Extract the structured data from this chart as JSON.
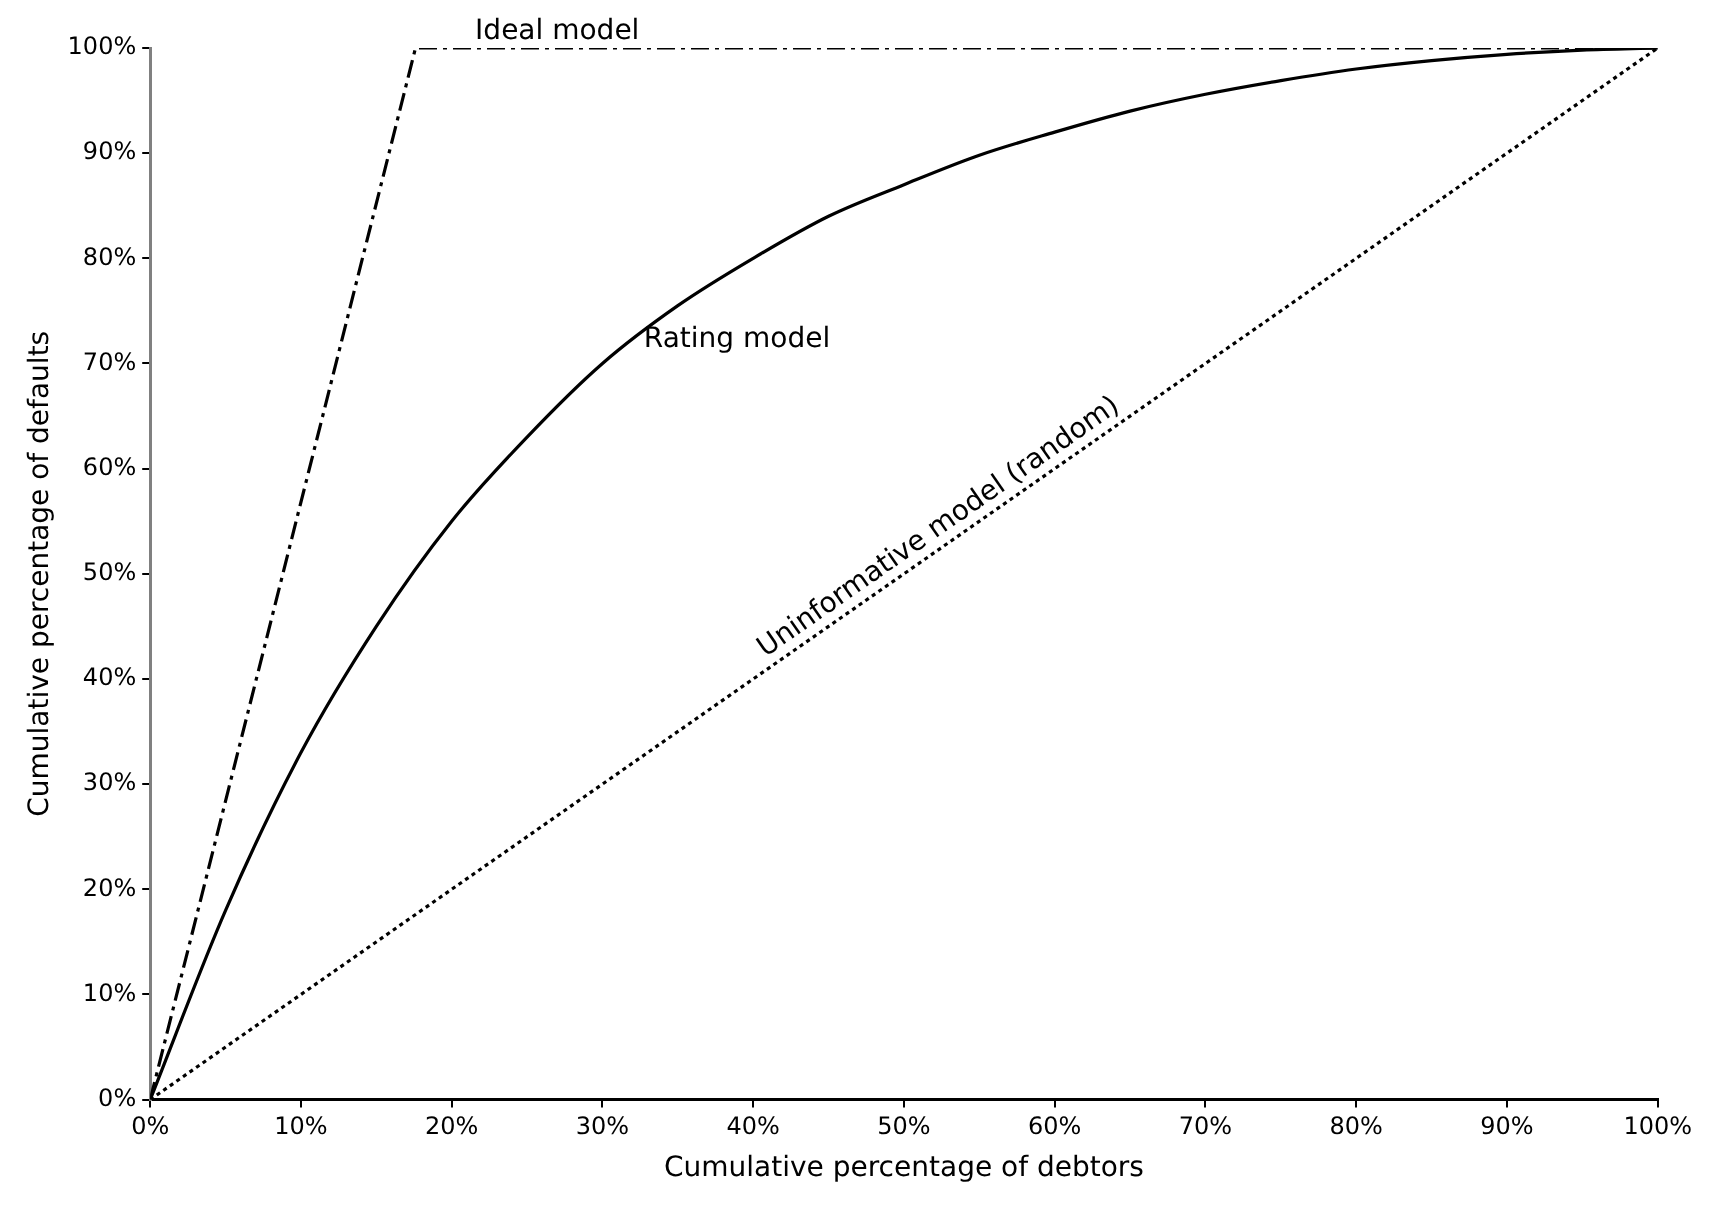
{
  "chart_data": {
    "type": "line",
    "xlabel": "Cumulative percentage of debtors",
    "ylabel": "Cumulative percentage of defaults",
    "xlim": [
      0,
      100
    ],
    "ylim": [
      0,
      100
    ],
    "xticks": [
      {
        "value": 0,
        "label": "0%"
      },
      {
        "value": 10,
        "label": "10%"
      },
      {
        "value": 20,
        "label": "20%"
      },
      {
        "value": 30,
        "label": "30%"
      },
      {
        "value": 40,
        "label": "40%"
      },
      {
        "value": 50,
        "label": "50%"
      },
      {
        "value": 60,
        "label": "60%"
      },
      {
        "value": 70,
        "label": "70%"
      },
      {
        "value": 80,
        "label": "80%"
      },
      {
        "value": 90,
        "label": "90%"
      },
      {
        "value": 100,
        "label": "100%"
      }
    ],
    "yticks": [
      {
        "value": 0,
        "label": "0%"
      },
      {
        "value": 10,
        "label": "10%"
      },
      {
        "value": 20,
        "label": "20%"
      },
      {
        "value": 30,
        "label": "30%"
      },
      {
        "value": 40,
        "label": "40%"
      },
      {
        "value": 50,
        "label": "50%"
      },
      {
        "value": 60,
        "label": "60%"
      },
      {
        "value": 70,
        "label": "70%"
      },
      {
        "value": 80,
        "label": "80%"
      },
      {
        "value": 90,
        "label": "90%"
      },
      {
        "value": 100,
        "label": "100%"
      }
    ],
    "grid": false,
    "legend": false,
    "marker": "none",
    "series": [
      {
        "color": "#000000",
        "line_style": "dashed",
        "x": [
          0,
          17.6,
          100
        ],
        "values": [
          0,
          100,
          100
        ]
      },
      {
        "color": "#000000",
        "line_style": "solid",
        "x": [
          0,
          5,
          10,
          15,
          20,
          25,
          30,
          35,
          40,
          45,
          50,
          55,
          60,
          65,
          70,
          75,
          80,
          85,
          90,
          95,
          100
        ],
        "values": [
          0,
          18,
          33,
          45,
          55,
          63,
          70,
          75.5,
          80,
          84,
          87,
          89.8,
          92,
          94,
          95.6,
          96.9,
          98,
          98.8,
          99.4,
          99.8,
          100
        ]
      },
      {
        "color": "#000000",
        "line_style": "dotted",
        "x": [
          0,
          100
        ],
        "values": [
          0,
          100
        ]
      }
    ],
    "annotations": [
      {
        "text": "Ideal model",
        "x": 27,
        "y": 100
      },
      {
        "text": "Rating model",
        "x": 35,
        "y": 75.5
      },
      {
        "text": "Uninformative model (random)",
        "x": 53,
        "y": 53
      }
    ]
  }
}
